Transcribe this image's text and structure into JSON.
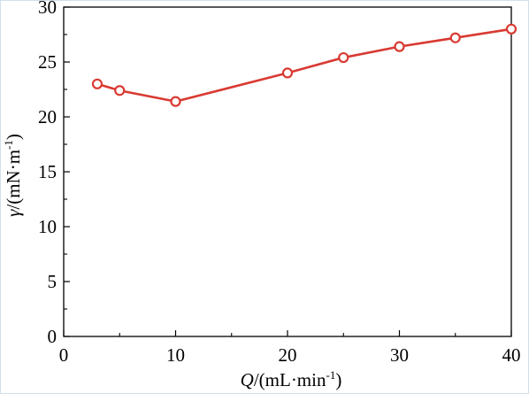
{
  "chart_data": {
    "type": "line",
    "title": "",
    "xlabel": {
      "symbol": "Q",
      "unit_open": "/(mL·min",
      "unit_exp": "-1",
      "unit_close": ")"
    },
    "ylabel": {
      "symbol": "γ",
      "unit_open": "/(mN·m",
      "unit_exp": "-1",
      "unit_close": ")"
    },
    "xlim": [
      0,
      40
    ],
    "ylim": [
      0,
      30
    ],
    "x_ticks": [
      "0",
      "10",
      "20",
      "30",
      "40"
    ],
    "y_ticks": [
      "0",
      "5",
      "10",
      "15",
      "20",
      "25",
      "30"
    ],
    "grid": false,
    "legend": "none",
    "series": [
      {
        "color": "#d93a32",
        "marker": "open-circle",
        "x": [
          3,
          5,
          10,
          20,
          25,
          30,
          35,
          40
        ],
        "y": [
          23.0,
          22.4,
          21.4,
          24.0,
          25.4,
          26.4,
          27.2,
          28.0
        ]
      }
    ]
  }
}
